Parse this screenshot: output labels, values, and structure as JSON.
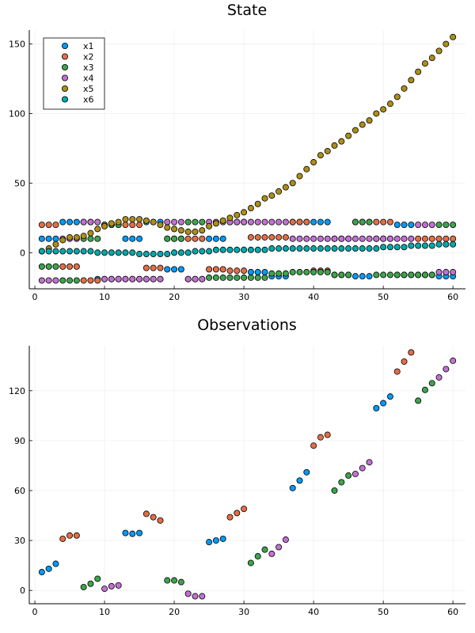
{
  "colors": {
    "x1": "#009af9",
    "x2": "#e26f46",
    "x3": "#3da44d",
    "x4": "#c271d2",
    "x5": "#ac8e18",
    "x6": "#00a9ad"
  },
  "chart_data": [
    {
      "type": "scatter",
      "title": "State",
      "xlabel": "",
      "ylabel": "",
      "xlim": [
        -0.8,
        61.8
      ],
      "ylim": [
        -26,
        160
      ],
      "xticks": [
        0,
        10,
        20,
        30,
        40,
        50,
        60
      ],
      "yticks": [
        0,
        50,
        100,
        150
      ],
      "grid": true,
      "legend": "top-left",
      "x": [
        1,
        2,
        3,
        4,
        5,
        6,
        7,
        8,
        9,
        10,
        11,
        12,
        13,
        14,
        15,
        16,
        17,
        18,
        19,
        20,
        21,
        22,
        23,
        24,
        25,
        26,
        27,
        28,
        29,
        30,
        31,
        32,
        33,
        34,
        35,
        36,
        37,
        38,
        39,
        40,
        41,
        42,
        43,
        44,
        45,
        46,
        47,
        48,
        49,
        50,
        51,
        52,
        53,
        54,
        55,
        56,
        57,
        58,
        59,
        60
      ],
      "series": [
        {
          "name": "x1",
          "color": "x1",
          "values": [
            10,
            10,
            10,
            22,
            22,
            22,
            22,
            22,
            -19,
            -19,
            -19,
            -19,
            10,
            10,
            10,
            22,
            22,
            22,
            -12,
            -12,
            -12,
            -19,
            -19,
            -19,
            10,
            10,
            10,
            22,
            22,
            22,
            -14,
            -14,
            -14,
            -17,
            -17,
            -17,
            22,
            22,
            22,
            22,
            22,
            22,
            -16,
            -16,
            -16,
            -17,
            -17,
            -17,
            10,
            10,
            10,
            20,
            20,
            20,
            -16,
            -16,
            -16,
            -17,
            -17,
            -17
          ]
        },
        {
          "name": "x2",
          "color": "x2",
          "values": [
            20,
            20,
            20,
            -10,
            -10,
            -10,
            -20,
            -20,
            -20,
            20,
            20,
            20,
            20,
            20,
            20,
            -11,
            -11,
            -11,
            10,
            10,
            10,
            10,
            10,
            10,
            -12,
            -12,
            -12,
            -13,
            -13,
            -13,
            11,
            11,
            11,
            11,
            11,
            11,
            22,
            22,
            22,
            -13,
            -13,
            -13,
            10,
            10,
            10,
            22,
            22,
            22,
            22,
            22,
            22,
            -16,
            -16,
            -16,
            10,
            10,
            10,
            10,
            10,
            10
          ]
        },
        {
          "name": "x3",
          "color": "x3",
          "values": [
            -10,
            -10,
            -10,
            -20,
            -20,
            -20,
            10,
            10,
            10,
            20,
            20,
            20,
            -19,
            -19,
            -19,
            -19,
            -19,
            -19,
            10,
            10,
            10,
            22,
            22,
            22,
            -18,
            -18,
            -18,
            -18,
            -18,
            -18,
            -18,
            -18,
            -18,
            -15,
            -15,
            -15,
            -14,
            -14,
            -14,
            -14,
            -14,
            -14,
            -16,
            -16,
            -16,
            22,
            22,
            22,
            -16,
            -16,
            -16,
            -16,
            -16,
            -16,
            -16,
            -16,
            -16,
            20,
            20,
            20
          ]
        },
        {
          "name": "x4",
          "color": "x4",
          "values": [
            -20,
            -20,
            -20,
            10,
            10,
            10,
            22,
            22,
            22,
            -19,
            -19,
            -19,
            -19,
            -19,
            -19,
            -19,
            -19,
            -19,
            22,
            22,
            22,
            -19,
            -19,
            -19,
            22,
            22,
            22,
            22,
            22,
            22,
            22,
            22,
            22,
            22,
            22,
            22,
            10,
            10,
            10,
            10,
            10,
            10,
            10,
            10,
            10,
            10,
            10,
            10,
            10,
            10,
            10,
            10,
            10,
            10,
            20,
            20,
            20,
            -14,
            -14,
            -14
          ]
        },
        {
          "name": "x5",
          "color": "x5",
          "values": [
            1,
            3,
            6,
            9,
            11,
            11,
            12,
            14,
            17,
            19,
            21,
            22,
            24,
            24,
            24,
            23,
            22,
            20,
            18,
            17,
            16,
            15,
            15,
            16,
            19,
            21,
            23,
            25,
            27,
            29,
            32,
            35,
            39,
            41,
            44,
            47,
            50,
            55,
            60,
            65,
            70,
            73,
            77,
            80,
            84,
            88,
            92,
            95,
            100,
            103,
            107,
            112,
            118,
            124,
            130,
            136,
            140,
            145,
            150,
            155
          ]
        },
        {
          "name": "x6",
          "color": "x6",
          "values": [
            1,
            1,
            1,
            1,
            1,
            1,
            1,
            1,
            0,
            0,
            0,
            0,
            0,
            0,
            -1,
            -1,
            -1,
            -1,
            -1,
            0,
            0,
            0,
            1,
            1,
            1,
            2,
            2,
            2,
            2,
            2,
            2,
            2,
            2,
            3,
            3,
            3,
            3,
            3,
            3,
            3,
            3,
            3,
            3,
            3,
            3,
            3,
            3,
            3,
            3,
            4,
            4,
            4,
            4,
            5,
            5,
            5,
            5,
            6,
            6,
            6
          ]
        }
      ]
    },
    {
      "type": "scatter",
      "title": "Observations",
      "xlabel": "",
      "ylabel": "",
      "xlim": [
        -0.8,
        61.8
      ],
      "ylim": [
        -8,
        147
      ],
      "xticks": [
        0,
        10,
        20,
        30,
        40,
        50,
        60
      ],
      "yticks": [
        0,
        30,
        60,
        90,
        120
      ],
      "grid": true,
      "legend": "none",
      "points": [
        {
          "x": 1,
          "y": 11,
          "color": "x1"
        },
        {
          "x": 2,
          "y": 13,
          "color": "x1"
        },
        {
          "x": 3,
          "y": 16,
          "color": "x1"
        },
        {
          "x": 4,
          "y": 31,
          "color": "x2"
        },
        {
          "x": 5,
          "y": 33,
          "color": "x2"
        },
        {
          "x": 6,
          "y": 33,
          "color": "x2"
        },
        {
          "x": 7,
          "y": 2,
          "color": "x3"
        },
        {
          "x": 8,
          "y": 4,
          "color": "x3"
        },
        {
          "x": 9,
          "y": 7,
          "color": "x3"
        },
        {
          "x": 10,
          "y": 1,
          "color": "x4"
        },
        {
          "x": 11,
          "y": 2.5,
          "color": "x4"
        },
        {
          "x": 12,
          "y": 3,
          "color": "x4"
        },
        {
          "x": 13,
          "y": 34.5,
          "color": "x1"
        },
        {
          "x": 14,
          "y": 34,
          "color": "x1"
        },
        {
          "x": 15,
          "y": 34.5,
          "color": "x1"
        },
        {
          "x": 16,
          "y": 46,
          "color": "x2"
        },
        {
          "x": 17,
          "y": 44,
          "color": "x2"
        },
        {
          "x": 18,
          "y": 42,
          "color": "x2"
        },
        {
          "x": 19,
          "y": 6,
          "color": "x3"
        },
        {
          "x": 20,
          "y": 6,
          "color": "x3"
        },
        {
          "x": 21,
          "y": 5,
          "color": "x3"
        },
        {
          "x": 22,
          "y": -2,
          "color": "x4"
        },
        {
          "x": 23,
          "y": -3.5,
          "color": "x4"
        },
        {
          "x": 24,
          "y": -3.5,
          "color": "x4"
        },
        {
          "x": 25,
          "y": 29,
          "color": "x1"
        },
        {
          "x": 26,
          "y": 30,
          "color": "x1"
        },
        {
          "x": 27,
          "y": 31,
          "color": "x1"
        },
        {
          "x": 28,
          "y": 44,
          "color": "x2"
        },
        {
          "x": 29,
          "y": 46.5,
          "color": "x2"
        },
        {
          "x": 30,
          "y": 49,
          "color": "x2"
        },
        {
          "x": 31,
          "y": 16.5,
          "color": "x3"
        },
        {
          "x": 32,
          "y": 20.5,
          "color": "x3"
        },
        {
          "x": 33,
          "y": 24.5,
          "color": "x3"
        },
        {
          "x": 34,
          "y": 22,
          "color": "x4"
        },
        {
          "x": 35,
          "y": 26,
          "color": "x4"
        },
        {
          "x": 36,
          "y": 30.5,
          "color": "x4"
        },
        {
          "x": 37,
          "y": 61.5,
          "color": "x1"
        },
        {
          "x": 38,
          "y": 66,
          "color": "x1"
        },
        {
          "x": 39,
          "y": 71,
          "color": "x1"
        },
        {
          "x": 40,
          "y": 87,
          "color": "x2"
        },
        {
          "x": 41,
          "y": 92,
          "color": "x2"
        },
        {
          "x": 42,
          "y": 93.5,
          "color": "x2"
        },
        {
          "x": 43,
          "y": 60,
          "color": "x3"
        },
        {
          "x": 44,
          "y": 65,
          "color": "x3"
        },
        {
          "x": 45,
          "y": 69,
          "color": "x3"
        },
        {
          "x": 46,
          "y": 70,
          "color": "x4"
        },
        {
          "x": 47,
          "y": 73.5,
          "color": "x4"
        },
        {
          "x": 48,
          "y": 77,
          "color": "x4"
        },
        {
          "x": 49,
          "y": 109.5,
          "color": "x1"
        },
        {
          "x": 50,
          "y": 112.5,
          "color": "x1"
        },
        {
          "x": 51,
          "y": 116.5,
          "color": "x1"
        },
        {
          "x": 52,
          "y": 131.5,
          "color": "x2"
        },
        {
          "x": 53,
          "y": 137.5,
          "color": "x2"
        },
        {
          "x": 54,
          "y": 143,
          "color": "x2"
        },
        {
          "x": 55,
          "y": 114,
          "color": "x3"
        },
        {
          "x": 56,
          "y": 120.5,
          "color": "x3"
        },
        {
          "x": 57,
          "y": 124.5,
          "color": "x3"
        },
        {
          "x": 58,
          "y": 128,
          "color": "x4"
        },
        {
          "x": 59,
          "y": 133,
          "color": "x4"
        },
        {
          "x": 60,
          "y": 138,
          "color": "x4"
        }
      ]
    }
  ]
}
